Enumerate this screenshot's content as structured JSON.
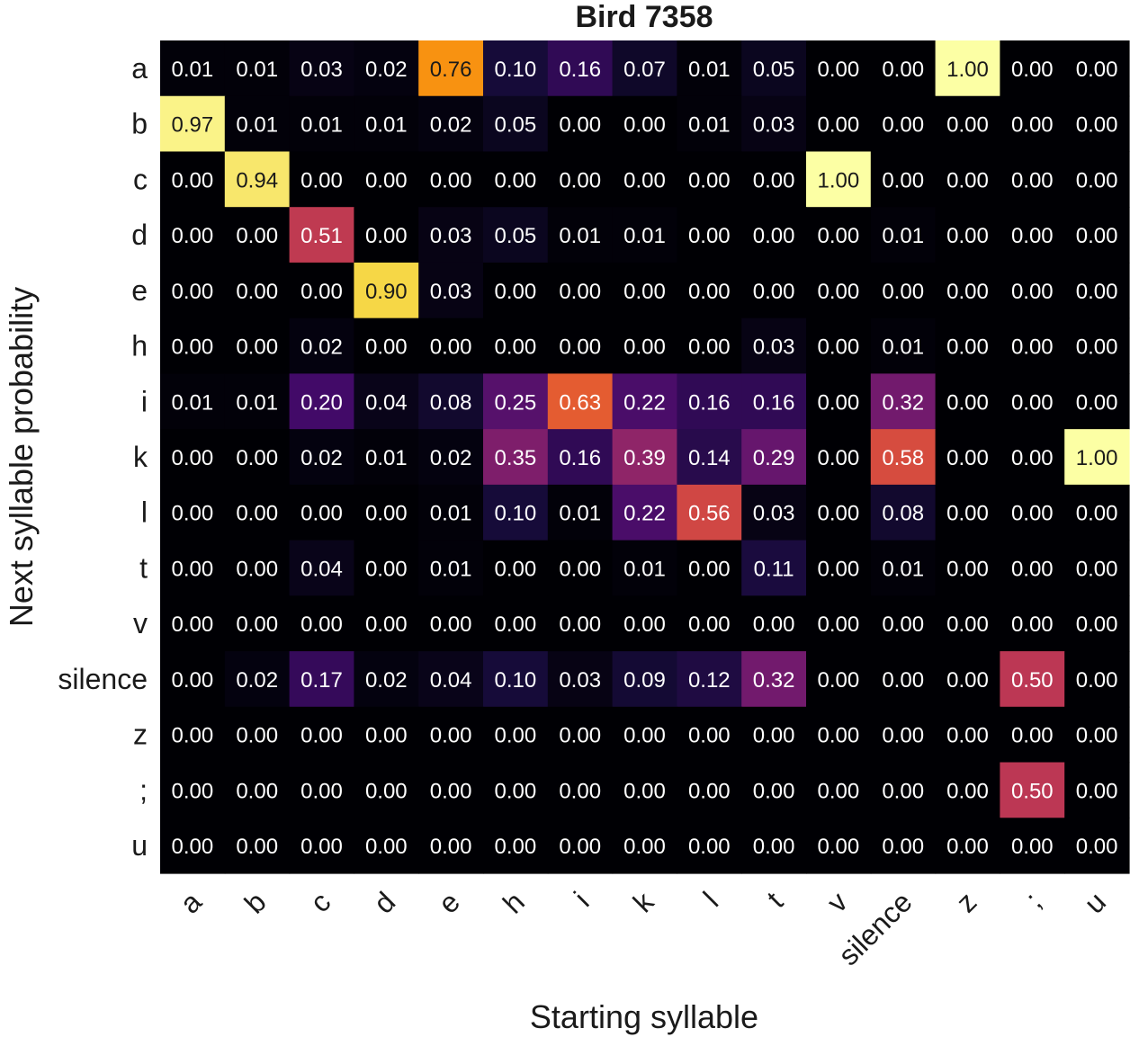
{
  "chart_data": {
    "type": "heatmap",
    "title": "Bird 7358",
    "xlabel": "Starting syllable",
    "ylabel": "Next syllable probability",
    "colormap": "inferno",
    "vmin": 0,
    "vmax": 1,
    "x_categories": [
      "a",
      "b",
      "c",
      "d",
      "e",
      "h",
      "i",
      "k",
      "l",
      "t",
      "v",
      "silence",
      "z",
      ";",
      "u"
    ],
    "y_categories": [
      "a",
      "b",
      "c",
      "d",
      "e",
      "h",
      "i",
      "k",
      "l",
      "t",
      "v",
      "silence",
      "z",
      ";",
      "u"
    ],
    "values": [
      [
        0.01,
        0.01,
        0.03,
        0.02,
        0.76,
        0.1,
        0.16,
        0.07,
        0.01,
        0.05,
        0.0,
        0.0,
        1.0,
        0.0,
        0.0
      ],
      [
        0.97,
        0.01,
        0.01,
        0.01,
        0.02,
        0.05,
        0.0,
        0.0,
        0.01,
        0.03,
        0.0,
        0.0,
        0.0,
        0.0,
        0.0
      ],
      [
        0.0,
        0.94,
        0.0,
        0.0,
        0.0,
        0.0,
        0.0,
        0.0,
        0.0,
        0.0,
        1.0,
        0.0,
        0.0,
        0.0,
        0.0
      ],
      [
        0.0,
        0.0,
        0.51,
        0.0,
        0.03,
        0.05,
        0.01,
        0.01,
        0.0,
        0.0,
        0.0,
        0.01,
        0.0,
        0.0,
        0.0
      ],
      [
        0.0,
        0.0,
        0.0,
        0.9,
        0.03,
        0.0,
        0.0,
        0.0,
        0.0,
        0.0,
        0.0,
        0.0,
        0.0,
        0.0,
        0.0
      ],
      [
        0.0,
        0.0,
        0.02,
        0.0,
        0.0,
        0.0,
        0.0,
        0.0,
        0.0,
        0.03,
        0.0,
        0.01,
        0.0,
        0.0,
        0.0
      ],
      [
        0.01,
        0.01,
        0.2,
        0.04,
        0.08,
        0.25,
        0.63,
        0.22,
        0.16,
        0.16,
        0.0,
        0.32,
        0.0,
        0.0,
        0.0
      ],
      [
        0.0,
        0.0,
        0.02,
        0.01,
        0.02,
        0.35,
        0.16,
        0.39,
        0.14,
        0.29,
        0.0,
        0.58,
        0.0,
        0.0,
        1.0
      ],
      [
        0.0,
        0.0,
        0.0,
        0.0,
        0.01,
        0.1,
        0.01,
        0.22,
        0.56,
        0.03,
        0.0,
        0.08,
        0.0,
        0.0,
        0.0
      ],
      [
        0.0,
        0.0,
        0.04,
        0.0,
        0.01,
        0.0,
        0.0,
        0.01,
        0.0,
        0.11,
        0.0,
        0.01,
        0.0,
        0.0,
        0.0
      ],
      [
        0.0,
        0.0,
        0.0,
        0.0,
        0.0,
        0.0,
        0.0,
        0.0,
        0.0,
        0.0,
        0.0,
        0.0,
        0.0,
        0.0,
        0.0
      ],
      [
        0.0,
        0.02,
        0.17,
        0.02,
        0.04,
        0.1,
        0.03,
        0.09,
        0.12,
        0.32,
        0.0,
        0.0,
        0.0,
        0.5,
        0.0
      ],
      [
        0.0,
        0.0,
        0.0,
        0.0,
        0.0,
        0.0,
        0.0,
        0.0,
        0.0,
        0.0,
        0.0,
        0.0,
        0.0,
        0.0,
        0.0
      ],
      [
        0.0,
        0.0,
        0.0,
        0.0,
        0.0,
        0.0,
        0.0,
        0.0,
        0.0,
        0.0,
        0.0,
        0.0,
        0.0,
        0.5,
        0.0
      ],
      [
        0.0,
        0.0,
        0.0,
        0.0,
        0.0,
        0.0,
        0.0,
        0.0,
        0.0,
        0.0,
        0.0,
        0.0,
        0.0,
        0.0,
        0.0
      ]
    ]
  }
}
